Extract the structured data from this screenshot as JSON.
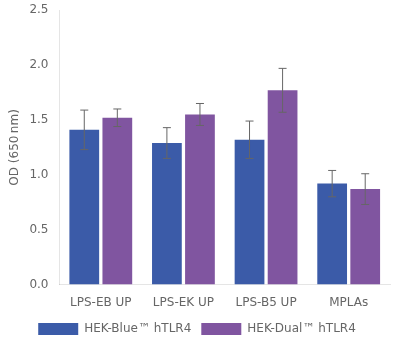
{
  "chart_data": {
    "type": "bar",
    "categories": [
      "LPS-EB UP",
      "LPS-EK UP",
      "LPS-B5 UP",
      "MPLAs"
    ],
    "series": [
      {
        "name": "HEK-Blue™ hTLR4",
        "color": "#3B5BA8",
        "values": [
          1.41,
          1.29,
          1.32,
          0.92
        ],
        "errors": [
          0.18,
          0.14,
          0.17,
          0.12
        ]
      },
      {
        "name": "HEK-Dual™ hTLR4",
        "color": "#8055A0",
        "values": [
          1.52,
          1.55,
          1.77,
          0.87
        ],
        "errors": [
          0.08,
          0.1,
          0.2,
          0.14
        ]
      }
    ],
    "ylabel": "OD (650 nm)",
    "ylim": [
      0.0,
      2.5
    ],
    "yticks": [
      {
        "value": 0.0,
        "label": "0.0"
      },
      0.5,
      {
        "value": 1.0,
        "label": "1.0"
      },
      1.5,
      {
        "value": 2.0,
        "label": "2.0"
      },
      2.5
    ],
    "grid": false,
    "legend": "bottom"
  }
}
